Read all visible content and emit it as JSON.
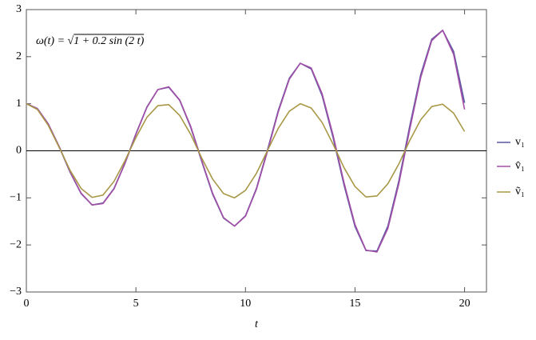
{
  "chart_data": {
    "type": "line",
    "x_label": "t",
    "annotation": "ω(t) = √1 + 0.2 sin (2 t)",
    "x": [
      0,
      0.5,
      1,
      1.5,
      2,
      2.5,
      3,
      3.5,
      4,
      4.5,
      5,
      5.5,
      6,
      6.5,
      7,
      7.5,
      8,
      8.5,
      9,
      9.5,
      10,
      10.5,
      11,
      11.5,
      12,
      12.5,
      13,
      13.5,
      14,
      14.5,
      15,
      15.5,
      16,
      16.5,
      17,
      17.5,
      18,
      18.5,
      19,
      19.5,
      20
    ],
    "series": [
      {
        "name": "v₁",
        "color": "#5b57a6",
        "values": [
          1.0,
          0.9,
          0.57,
          0.08,
          -0.46,
          -0.91,
          -1.15,
          -1.11,
          -0.8,
          -0.26,
          0.36,
          0.93,
          1.3,
          1.35,
          1.07,
          0.5,
          -0.22,
          -0.92,
          -1.43,
          -1.6,
          -1.38,
          -0.8,
          0.01,
          0.86,
          1.54,
          1.86,
          1.74,
          1.17,
          0.28,
          -0.73,
          -1.61,
          -2.12,
          -2.13,
          -1.6,
          -0.64,
          0.53,
          1.62,
          2.37,
          2.56,
          2.11,
          1.02
        ]
      },
      {
        "name": "v̂₁",
        "color": "#a24fa6",
        "values": [
          1.0,
          0.9,
          0.57,
          0.09,
          -0.45,
          -0.9,
          -1.15,
          -1.12,
          -0.81,
          -0.27,
          0.35,
          0.92,
          1.3,
          1.36,
          1.08,
          0.52,
          -0.2,
          -0.9,
          -1.42,
          -1.6,
          -1.39,
          -0.82,
          -0.02,
          0.83,
          1.52,
          1.86,
          1.76,
          1.21,
          0.33,
          -0.68,
          -1.57,
          -2.11,
          -2.15,
          -1.65,
          -0.7,
          0.46,
          1.56,
          2.34,
          2.56,
          2.05,
          0.88
        ]
      },
      {
        "name": "ṽ₁",
        "color": "#a89848",
        "values": [
          1.0,
          0.88,
          0.54,
          0.07,
          -0.42,
          -0.8,
          -0.99,
          -0.94,
          -0.65,
          -0.21,
          0.28,
          0.71,
          0.96,
          0.98,
          0.75,
          0.35,
          -0.15,
          -0.6,
          -0.91,
          -1.0,
          -0.84,
          -0.48,
          0.0,
          0.48,
          0.84,
          1.0,
          0.91,
          0.6,
          0.14,
          -0.36,
          -0.76,
          -0.98,
          -0.96,
          -0.7,
          -0.28,
          0.22,
          0.66,
          0.94,
          0.99,
          0.8,
          0.41
        ]
      }
    ],
    "xlim": [
      0,
      21
    ],
    "ylim": [
      -3,
      3
    ],
    "xticks": [
      0,
      5,
      10,
      15,
      20
    ],
    "yticks": [
      {
        "value": -3,
        "label": "−3"
      },
      {
        "value": -2,
        "label": "−2"
      },
      {
        "value": -1,
        "label": "−1"
      },
      0,
      1,
      2,
      3
    ],
    "legend": "right"
  }
}
